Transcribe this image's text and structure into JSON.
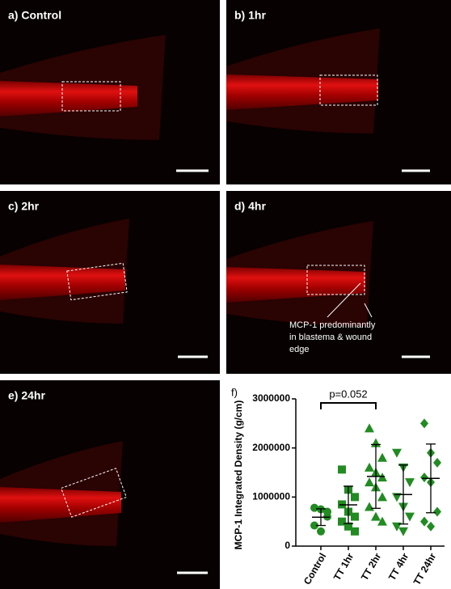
{
  "panels": {
    "a": "a) Control",
    "b": "b) 1hr",
    "c": "c) 2hr",
    "d": "d) 4hr",
    "e": "e) 24hr"
  },
  "annotation": [
    "MCP-1 predominantly",
    "in blastema & wound",
    "edge"
  ],
  "chart_data": {
    "type": "scatter",
    "panel_label": "f)",
    "y_label": "MCP-1 Integrated Density (g/cm)",
    "categories": [
      "Control",
      "TT 1hr",
      "TT 2hr",
      "TT 4hr",
      "TT 24hr"
    ],
    "markers": [
      "circle",
      "square",
      "triangle",
      "triangle-down",
      "diamond"
    ],
    "color": "#228b22",
    "points": [
      [
        780000,
        750000,
        600000,
        420000,
        300000,
        700000
      ],
      [
        1560000,
        1150000,
        1000000,
        850000,
        700000,
        600000,
        500000,
        400000,
        300000
      ],
      [
        2400000,
        2100000,
        1800000,
        1600000,
        1500000,
        1400000,
        1300000,
        1200000,
        1000000,
        800000,
        600000,
        500000
      ],
      [
        1900000,
        1600000,
        1300000,
        1000000,
        800000,
        600000,
        400000,
        300000
      ],
      [
        2500000,
        1900000,
        1700000,
        1400000,
        1300000,
        700000,
        500000,
        400000
      ]
    ],
    "means": [
      590000,
      840000,
      1420000,
      1050000,
      1380000
    ],
    "sd": [
      170000,
      380000,
      650000,
      600000,
      700000
    ],
    "ylim": [
      0,
      3000000
    ],
    "yticks": [
      0,
      1000000,
      2000000,
      3000000
    ],
    "comparison": {
      "label": "p=0.052"
    }
  }
}
